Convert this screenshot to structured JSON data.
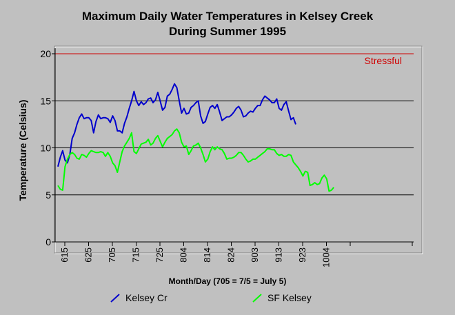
{
  "chart_data": {
    "type": "line",
    "title": "Maximum Daily Water Temperatures in Kelsey Creek",
    "subtitle": "During Summer 1995",
    "xlabel": "Month/Day (705 = 7/5 = July 5)",
    "ylabel": "Temperature (Celsius)",
    "ylim": [
      0,
      20
    ],
    "yticks": [
      0,
      5,
      10,
      15,
      20
    ],
    "xticks": [
      "615",
      "625",
      "705",
      "715",
      "725",
      "804",
      "814",
      "824",
      "903",
      "913",
      "923",
      "1004"
    ],
    "x_axis_note": "one point per day starting June 15, 1995",
    "grid": "horizontal",
    "threshold": {
      "value": 20,
      "label": "Stressful",
      "color": "#d00000"
    },
    "series": [
      {
        "name": "Kelsey Cr",
        "color": "#0000cc",
        "values": [
          8.0,
          9.0,
          9.7,
          8.7,
          8.4,
          9.3,
          11.0,
          11.6,
          12.5,
          13.2,
          13.6,
          13.1,
          13.2,
          13.2,
          12.9,
          11.6,
          12.8,
          13.5,
          13.1,
          13.2,
          13.2,
          13.1,
          12.7,
          13.4,
          12.9,
          11.8,
          11.8,
          11.6,
          12.6,
          13.3,
          14.2,
          15.0,
          16.0,
          15.0,
          14.5,
          14.9,
          14.6,
          14.8,
          15.2,
          15.3,
          14.8,
          15.1,
          15.9,
          15.0,
          14.0,
          14.3,
          15.5,
          15.7,
          16.2,
          16.8,
          16.4,
          15.0,
          13.7,
          14.2,
          13.6,
          13.7,
          14.3,
          14.5,
          14.8,
          15.0,
          13.4,
          12.6,
          12.8,
          13.6,
          14.3,
          14.5,
          14.2,
          14.6,
          13.8,
          12.9,
          13.1,
          13.3,
          13.3,
          13.5,
          13.8,
          14.2,
          14.4,
          14.0,
          13.3,
          13.4,
          13.7,
          13.9,
          13.8,
          14.2,
          14.5,
          14.5,
          15.1,
          15.5,
          15.3,
          15.1,
          14.8,
          14.8,
          15.2,
          14.2,
          14.0,
          14.6,
          14.9,
          13.9,
          13.0,
          13.2,
          12.5
        ]
      },
      {
        "name": "SF Kelsey",
        "color": "#00ff00",
        "values": [
          6.0,
          5.6,
          5.5,
          8.0,
          8.8,
          9.3,
          9.5,
          9.3,
          8.9,
          8.8,
          9.3,
          9.2,
          9.0,
          9.4,
          9.7,
          9.6,
          9.5,
          9.5,
          9.6,
          9.5,
          9.1,
          9.5,
          9.1,
          8.4,
          8.1,
          7.4,
          8.5,
          9.6,
          10.2,
          10.6,
          11.0,
          11.6,
          9.6,
          9.4,
          9.9,
          10.4,
          10.5,
          10.6,
          10.9,
          10.3,
          10.5,
          11.0,
          11.3,
          10.7,
          10.1,
          10.6,
          11.0,
          11.2,
          11.4,
          11.8,
          12.0,
          11.6,
          10.6,
          10.1,
          10.2,
          9.3,
          9.7,
          10.2,
          10.3,
          10.5,
          10.0,
          9.3,
          8.5,
          8.8,
          9.6,
          10.1,
          9.8,
          10.1,
          9.9,
          9.8,
          9.4,
          8.8,
          8.9,
          8.9,
          9.0,
          9.2,
          9.5,
          9.5,
          9.2,
          8.8,
          8.5,
          8.6,
          8.8,
          8.8,
          9.0,
          9.2,
          9.4,
          9.6,
          9.9,
          9.9,
          9.8,
          9.8,
          9.4,
          9.2,
          9.3,
          9.1,
          9.1,
          9.3,
          9.2,
          8.5,
          8.2,
          7.9,
          7.5,
          7.0,
          7.5,
          7.4,
          6.0,
          6.1,
          6.3,
          6.1,
          6.2,
          6.8,
          7.1,
          6.7,
          5.4,
          5.5,
          5.8
        ]
      }
    ]
  }
}
